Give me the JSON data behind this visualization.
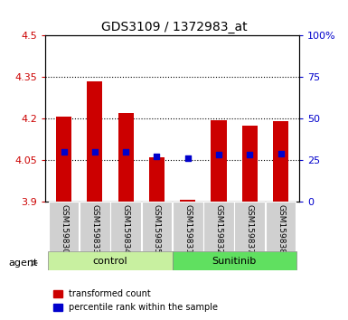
{
  "title": "GDS3109 / 1372983_at",
  "samples": [
    "GSM159830",
    "GSM159833",
    "GSM159834",
    "GSM159835",
    "GSM159831",
    "GSM159832",
    "GSM159837",
    "GSM159838"
  ],
  "groups": [
    "control",
    "control",
    "control",
    "control",
    "Sunitinib",
    "Sunitinib",
    "Sunitinib",
    "Sunitinib"
  ],
  "transformed_count": [
    4.205,
    4.335,
    4.22,
    4.06,
    3.905,
    4.195,
    4.175,
    4.19
  ],
  "percentile_rank": [
    30,
    30,
    30,
    27,
    26,
    28,
    28,
    29
  ],
  "ylim_left": [
    3.9,
    4.5
  ],
  "ylim_right": [
    0,
    100
  ],
  "yticks_left": [
    3.9,
    4.05,
    4.2,
    4.35,
    4.5
  ],
  "yticks_right": [
    0,
    25,
    50,
    75,
    100
  ],
  "ytick_labels_right": [
    "0",
    "25",
    "50",
    "75",
    "100%"
  ],
  "bar_color": "#cc0000",
  "dot_color": "#0000cc",
  "bar_width": 0.5,
  "baseline": 3.9,
  "group_colors_control": "#c8f0a0",
  "group_colors_sunitinib": "#60e060",
  "ylabel_left_color": "#cc0000",
  "ylabel_right_color": "#0000cc",
  "grid_color": "#000000",
  "background_plot": "#ffffff",
  "label_box_color": "#d0d0d0",
  "agent_label": "agent",
  "legend_items": [
    "transformed count",
    "percentile rank within the sample"
  ]
}
